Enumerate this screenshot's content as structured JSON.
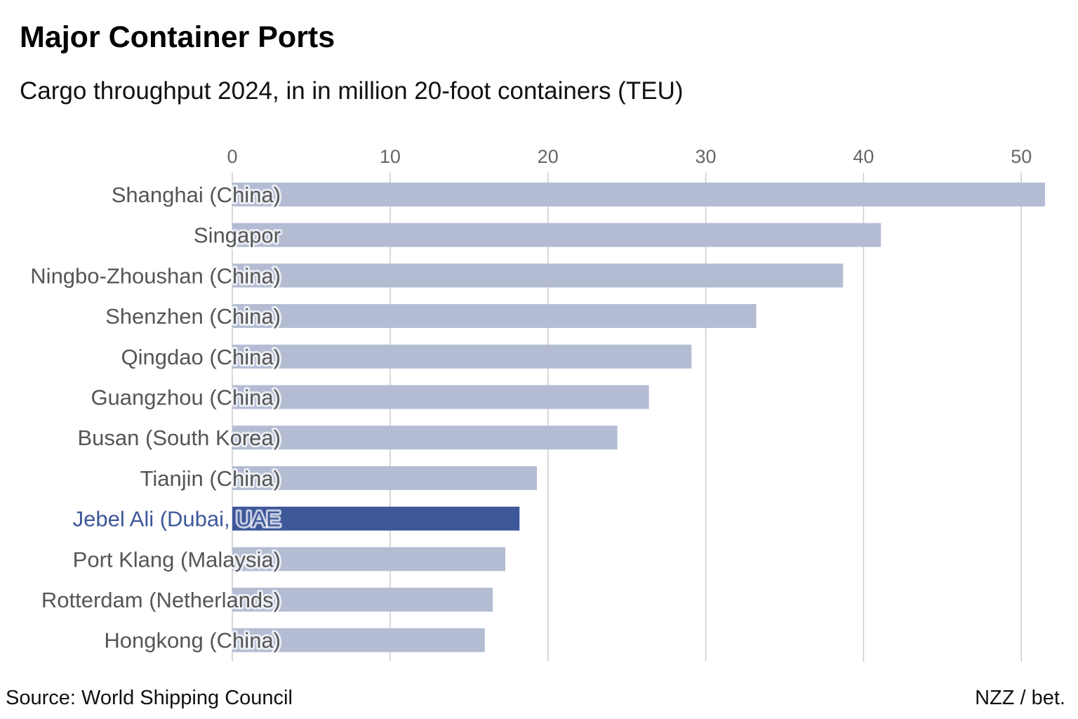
{
  "chart_data": {
    "type": "bar",
    "orientation": "horizontal",
    "title": "Major Container Ports",
    "subtitle": "Cargo throughput 2024, in in million 20-foot containers (TEU)",
    "categories": [
      "Shanghai (China)",
      "Singapor",
      "Ningbo-Zhoushan (China)",
      "Shenzhen (China)",
      "Qingdao (China)",
      "Guangzhou (China)",
      "Busan (South Korea)",
      "Tianjin (China)",
      "Jebel Ali (Dubai, UAE",
      "Port Klang (Malaysia)",
      "Rotterdam (Netherlands)",
      "Hongkong (China)"
    ],
    "values": [
      51.5,
      41.1,
      38.7,
      33.2,
      29.1,
      26.4,
      24.4,
      19.3,
      18.2,
      17.3,
      16.5,
      16.0
    ],
    "highlight_index": 8,
    "x_ticks": [
      0,
      10,
      20,
      30,
      40,
      50
    ],
    "xlim": [
      0,
      51.5
    ],
    "grid": true,
    "colors": {
      "bar": "#b3bcd3",
      "bar_highlight": "#3d5799",
      "label": "#555555",
      "label_highlight": "#3d5799",
      "grid": "#cccccc",
      "tick": "#666666"
    }
  },
  "footer": {
    "source": "Source: World Shipping Council",
    "credit": "NZZ / bet."
  }
}
